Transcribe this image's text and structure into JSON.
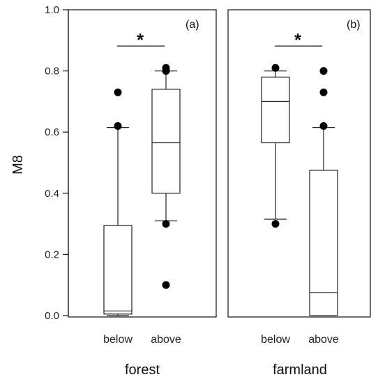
{
  "chart_data": {
    "type": "boxplot",
    "ylabel": "M8",
    "ylim": [
      0.0,
      1.0
    ],
    "yticks": [
      "0.0",
      "0.2",
      "0.4",
      "0.6",
      "0.8",
      "1.0"
    ],
    "grid": false,
    "panels": [
      {
        "tag": "(a)",
        "group_label": "forest",
        "significance": "*",
        "categories": [
          "below",
          "above"
        ],
        "boxes": [
          {
            "category": "below",
            "whisker_low": 0.0,
            "q1": 0.005,
            "median": 0.015,
            "q3": 0.295,
            "whisker_high": 0.615,
            "outliers": [
              0.73,
              0.62
            ]
          },
          {
            "category": "above",
            "whisker_low": 0.31,
            "q1": 0.4,
            "median": 0.565,
            "q3": 0.74,
            "whisker_high": 0.8,
            "outliers": [
              0.81,
              0.8,
              0.3,
              0.1
            ]
          }
        ]
      },
      {
        "tag": "(b)",
        "group_label": "farmland",
        "significance": "*",
        "categories": [
          "below",
          "above"
        ],
        "boxes": [
          {
            "category": "below",
            "whisker_low": 0.315,
            "q1": 0.565,
            "median": 0.7,
            "q3": 0.78,
            "whisker_high": 0.8,
            "outliers": [
              0.81,
              0.3
            ]
          },
          {
            "category": "above",
            "whisker_low": 0.0,
            "q1": 0.0,
            "median": 0.075,
            "q3": 0.475,
            "whisker_high": 0.615,
            "outliers": [
              0.8,
              0.73,
              0.62
            ]
          }
        ]
      }
    ]
  }
}
